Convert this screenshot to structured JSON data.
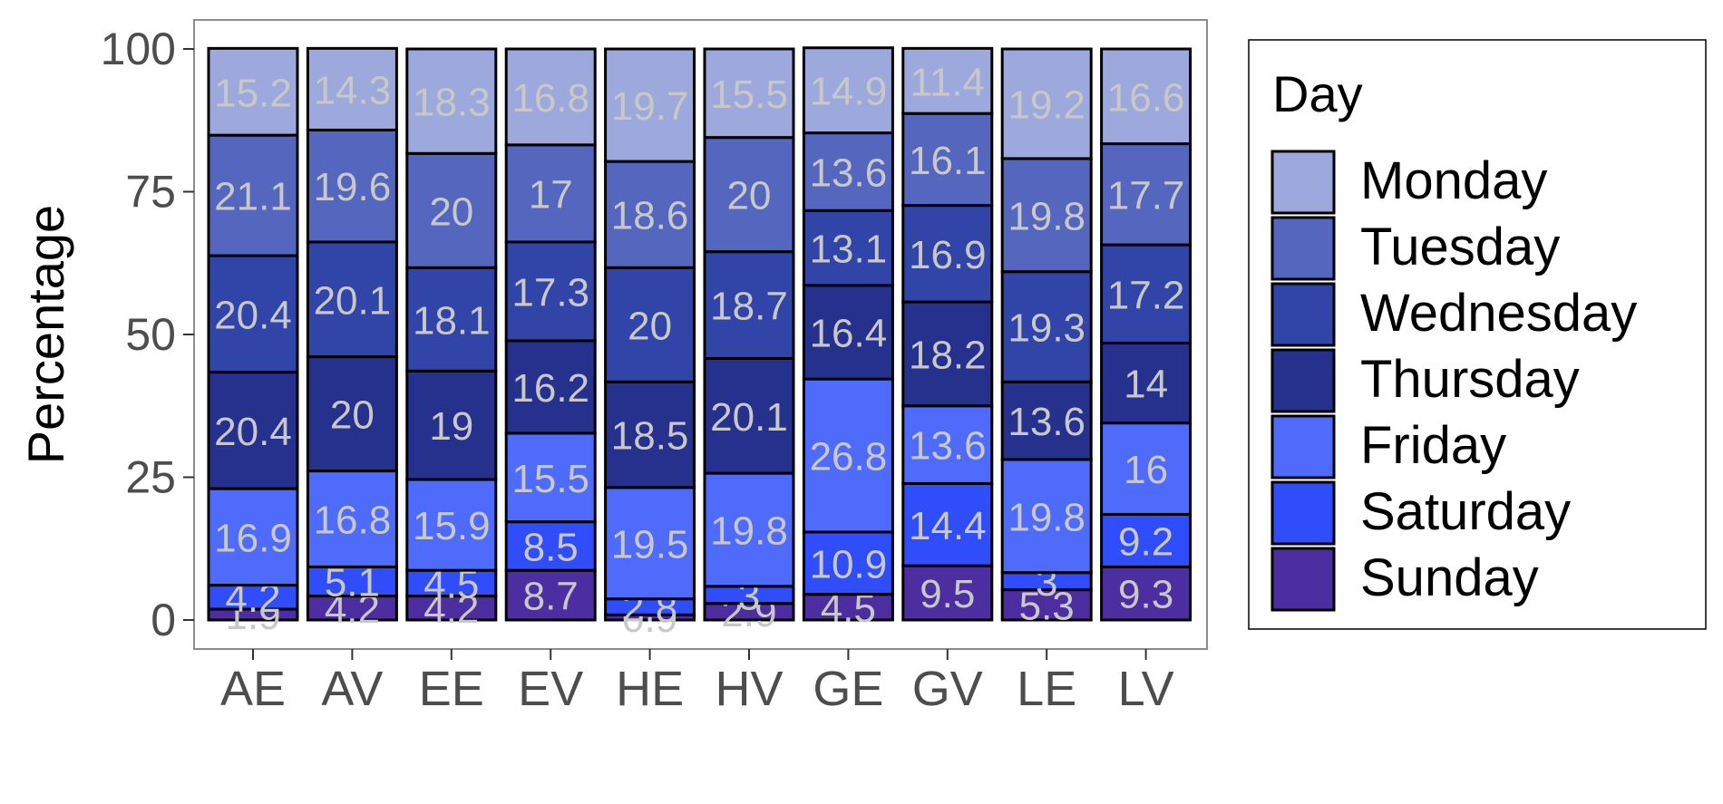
{
  "chart_data": {
    "type": "bar",
    "stacked": true,
    "ylabel": "Percentage",
    "xlabel": "",
    "ylim": [
      0,
      100
    ],
    "yticks": [
      0,
      25,
      50,
      75,
      100
    ],
    "grid": false,
    "legend_position": "right",
    "legend_title": "Day",
    "categories": [
      "AE",
      "AV",
      "EE",
      "EV",
      "HE",
      "HV",
      "GE",
      "GV",
      "LE",
      "LV"
    ],
    "series": [
      {
        "name": "Sunday",
        "color": "#4c2ea0",
        "values": [
          1.9,
          4.2,
          4.2,
          8.7,
          0.9,
          2.9,
          4.5,
          9.5,
          5.3,
          9.3
        ]
      },
      {
        "name": "Saturday",
        "color": "#2f4dfb",
        "values": [
          4.2,
          5.1,
          4.5,
          8.5,
          2.8,
          3.0,
          10.9,
          14.4,
          3.0,
          9.2
        ]
      },
      {
        "name": "Friday",
        "color": "#4f6bfb",
        "values": [
          16.9,
          16.8,
          15.9,
          15.5,
          19.5,
          19.8,
          26.8,
          13.6,
          19.8,
          16.0
        ]
      },
      {
        "name": "Thursday",
        "color": "#26308d",
        "values": [
          20.4,
          20.0,
          19.0,
          16.2,
          18.5,
          20.1,
          16.4,
          18.2,
          13.6,
          14.0
        ]
      },
      {
        "name": "Wednesday",
        "color": "#3144a8",
        "values": [
          20.4,
          20.1,
          18.1,
          17.3,
          20.0,
          18.7,
          13.1,
          16.9,
          19.3,
          17.2
        ]
      },
      {
        "name": "Tuesday",
        "color": "#5566bf",
        "values": [
          21.1,
          19.6,
          20.0,
          17.0,
          18.6,
          20.0,
          13.6,
          16.1,
          19.8,
          17.7
        ]
      },
      {
        "name": "Monday",
        "color": "#9da8dc",
        "values": [
          15.2,
          14.3,
          18.3,
          16.8,
          19.7,
          15.5,
          14.9,
          11.4,
          19.2,
          16.6
        ]
      }
    ],
    "legend_order": [
      "Monday",
      "Tuesday",
      "Wednesday",
      "Thursday",
      "Friday",
      "Saturday",
      "Sunday"
    ]
  }
}
